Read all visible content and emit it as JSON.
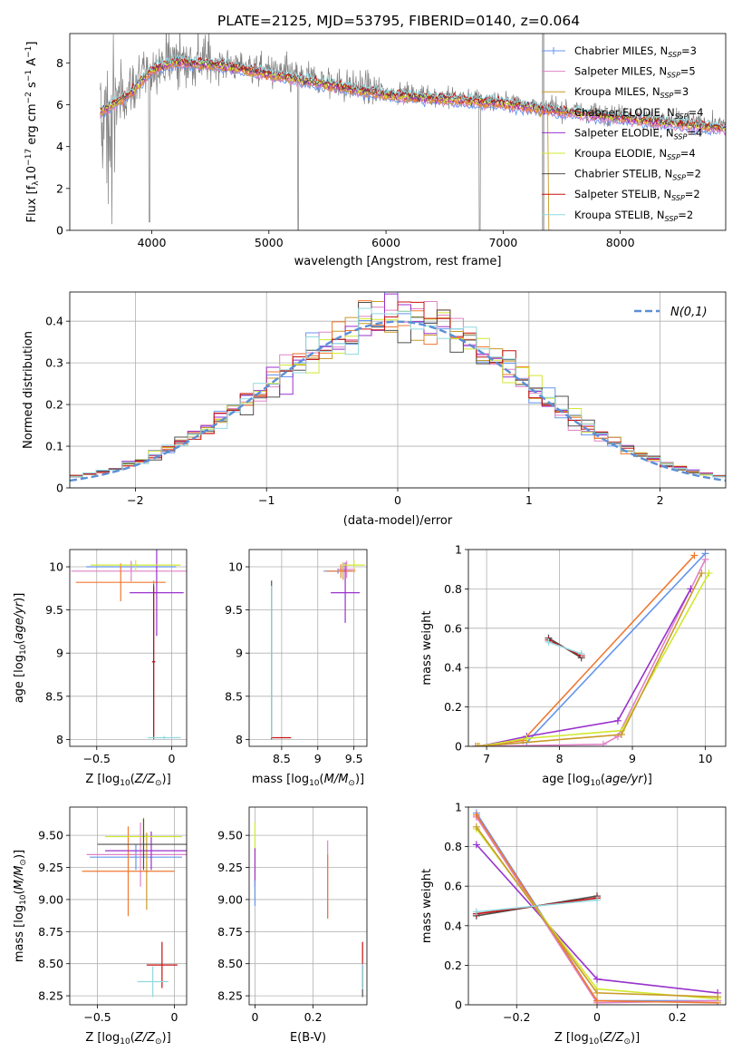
{
  "figure": {
    "title": "PLATE=2125, MJD=53795, FIBERID=0140, z=0.064"
  },
  "models": [
    {
      "label": "Chabrier MILES",
      "nssp": 3,
      "color": "#6495ed"
    },
    {
      "label": "Salpeter MILES",
      "nssp": 5,
      "color": "#e083c8"
    },
    {
      "label": "Kroupa MILES",
      "nssp": 3,
      "color": "#c89a28"
    },
    {
      "label": "Chabrier ELODIE",
      "nssp": 4,
      "color": "#f07830"
    },
    {
      "label": "Salpeter ELODIE",
      "nssp": 4,
      "color": "#9932cc"
    },
    {
      "label": "Kroupa ELODIE",
      "nssp": 4,
      "color": "#d0e830"
    },
    {
      "label": "Chabrier STELIB",
      "nssp": 2,
      "color": "#505050"
    },
    {
      "label": "Salpeter STELIB",
      "nssp": 2,
      "color": "#c81010"
    },
    {
      "label": "Kroupa STELIB",
      "nssp": 2,
      "color": "#90d8e0"
    }
  ],
  "chart_data": [
    {
      "id": "spectrum",
      "type": "line",
      "xlabel": "wavelength [Angstrom, rest frame]",
      "ylabel": "Flux [f_λ 10^-17 erg cm^-2 s^-1 A^-1]",
      "xlim": [
        3300,
        8900
      ],
      "ylim": [
        0,
        9.4
      ],
      "xticks": [
        4000,
        5000,
        6000,
        7000,
        8000
      ],
      "yticks": [
        0,
        2,
        4,
        6,
        8
      ],
      "grid": false,
      "legend": "right",
      "data_color": "#808080",
      "data_range": [
        3560,
        8900
      ],
      "continuum": [
        {
          "x": 3560,
          "y": 5.8
        },
        {
          "x": 3800,
          "y": 6.6
        },
        {
          "x": 4000,
          "y": 7.8
        },
        {
          "x": 4200,
          "y": 8.2
        },
        {
          "x": 4600,
          "y": 8.0
        },
        {
          "x": 5000,
          "y": 7.6
        },
        {
          "x": 5500,
          "y": 7.1
        },
        {
          "x": 6000,
          "y": 6.6
        },
        {
          "x": 6500,
          "y": 6.4
        },
        {
          "x": 7000,
          "y": 6.2
        },
        {
          "x": 7500,
          "y": 5.8
        },
        {
          "x": 8000,
          "y": 5.5
        },
        {
          "x": 8500,
          "y": 5.2
        },
        {
          "x": 8900,
          "y": 5.0
        }
      ]
    },
    {
      "id": "residuals",
      "type": "bar",
      "xlabel": "(data-model)/error",
      "ylabel": "Normed distribution",
      "xlim": [
        -2.5,
        2.5
      ],
      "ylim": [
        0,
        0.47
      ],
      "xticks": [
        -2,
        -1,
        0,
        1,
        2
      ],
      "yticks": [
        0.0,
        0.1,
        0.2,
        0.3,
        0.4
      ],
      "grid": true,
      "legend": "top-right",
      "gaussian_label": "N(0,1)",
      "gaussian_color": "#5b8fd6",
      "bin_width": 0.1
    },
    {
      "id": "age-vs-Z",
      "type": "scatter",
      "xlabel": "Z [log10(Z/Z_sun)]",
      "ylabel": "age [log10(age/yr)]",
      "xlim": [
        -0.68,
        0.1
      ],
      "ylim": [
        7.92,
        10.2
      ],
      "xticks": [
        -0.5,
        0.0
      ],
      "yticks": [
        8.0,
        8.5,
        9.0,
        9.5,
        10.0
      ],
      "grid": true,
      "points": [
        {
          "x": -0.27,
          "y": 10.0,
          "ex": 0.3,
          "ey": 0.04,
          "c": 0
        },
        {
          "x": -0.27,
          "y": 9.95,
          "ex": 0.4,
          "ey": 0.12,
          "c": 1
        },
        {
          "x": -0.12,
          "y": 9.82,
          "ex": 0.0,
          "ey": 0.02,
          "c": 2
        },
        {
          "x": -0.34,
          "y": 9.82,
          "ex": 0.3,
          "ey": 0.22,
          "c": 3
        },
        {
          "x": -0.1,
          "y": 9.7,
          "ex": 0.18,
          "ey": 0.5,
          "c": 4
        },
        {
          "x": -0.24,
          "y": 10.02,
          "ex": 0.3,
          "ey": 0.06,
          "c": 5
        },
        {
          "x": -0.12,
          "y": 8.9,
          "ex": 0.01,
          "ey": 0.9,
          "c": 6
        },
        {
          "x": -0.12,
          "y": 8.9,
          "ex": 0.01,
          "ey": 0.87,
          "c": 7
        },
        {
          "x": -0.05,
          "y": 8.02,
          "ex": 0.11,
          "ey": 0.02,
          "c": 8
        }
      ]
    },
    {
      "id": "age-vs-mass",
      "type": "scatter",
      "xlabel": "mass [log10(M/M_sun)]",
      "ylabel": "",
      "xlim": [
        8.05,
        9.68
      ],
      "ylim": [
        7.92,
        10.2
      ],
      "xticks": [
        8.5,
        9.0,
        9.5
      ],
      "yticks": [
        8.0,
        8.5,
        9.0,
        9.5,
        10.0
      ],
      "grid": true,
      "points": [
        {
          "x": 9.28,
          "y": 9.95,
          "ex": 0.2,
          "ey": 0.03,
          "c": 0
        },
        {
          "x": 9.4,
          "y": 9.97,
          "ex": 0.12,
          "ey": 0.1,
          "c": 1
        },
        {
          "x": 9.35,
          "y": 9.95,
          "ex": 0.01,
          "ey": 0.1,
          "c": 2
        },
        {
          "x": 9.32,
          "y": 9.95,
          "ex": 0.2,
          "ey": 0.08,
          "c": 3
        },
        {
          "x": 9.38,
          "y": 9.7,
          "ex": 0.2,
          "ey": 0.35,
          "c": 4
        },
        {
          "x": 9.5,
          "y": 10.02,
          "ex": 0.15,
          "ey": 0.06,
          "c": 5
        },
        {
          "x": 8.36,
          "y": 8.92,
          "ex": 0.0,
          "ey": 0.92,
          "c": 6
        },
        {
          "x": 8.5,
          "y": 8.02,
          "ex": 0.13,
          "ey": 0.0,
          "c": 7
        },
        {
          "x": 8.36,
          "y": 8.9,
          "ex": 0.0,
          "ey": 0.88,
          "c": 8
        }
      ]
    },
    {
      "id": "massweight-vs-age",
      "type": "line",
      "xlabel": "age [log10(age/yr)]",
      "ylabel": "mass weight",
      "xlim": [
        6.75,
        10.28
      ],
      "ylim": [
        0,
        1.0
      ],
      "xticks": [
        7,
        8,
        9,
        10
      ],
      "yticks": [
        0.0,
        0.2,
        0.4,
        0.6,
        0.8,
        1.0
      ],
      "grid": true,
      "series": [
        {
          "c": 0,
          "x": [
            6.85,
            7.55,
            10.0
          ],
          "y": [
            0.0,
            0.02,
            0.98
          ]
        },
        {
          "c": 1,
          "x": [
            6.9,
            8.6,
            8.8,
            10.0
          ],
          "y": [
            0.0,
            0.01,
            0.05,
            0.95
          ]
        },
        {
          "c": 3,
          "x": [
            6.85,
            7.5,
            9.85
          ],
          "y": [
            0.0,
            0.03,
            0.97
          ]
        },
        {
          "c": 4,
          "x": [
            6.9,
            7.55,
            8.8,
            9.8
          ],
          "y": [
            0.0,
            0.05,
            0.13,
            0.8
          ]
        },
        {
          "c": 5,
          "x": [
            6.9,
            7.55,
            8.85,
            10.05
          ],
          "y": [
            0.0,
            0.04,
            0.08,
            0.88
          ]
        },
        {
          "c": 6,
          "x": [
            7.85,
            8.3
          ],
          "y": [
            0.55,
            0.45
          ]
        },
        {
          "c": 7,
          "x": [
            7.85,
            8.3
          ],
          "y": [
            0.54,
            0.46
          ]
        },
        {
          "c": 8,
          "x": [
            7.85,
            8.3
          ],
          "y": [
            0.53,
            0.47
          ]
        },
        {
          "c": 2,
          "x": [
            6.88,
            8.85,
            9.95
          ],
          "y": [
            0.0,
            0.06,
            0.88
          ]
        }
      ]
    },
    {
      "id": "mass-vs-Z",
      "type": "scatter",
      "xlabel": "Z [log10(Z/Z_sun)]",
      "ylabel": "mass [log10(M/M_sun)]",
      "xlim": [
        -0.68,
        0.08
      ],
      "ylim": [
        8.18,
        9.72
      ],
      "xticks": [
        -0.5,
        0.0
      ],
      "yticks": [
        8.25,
        8.5,
        8.75,
        9.0,
        9.25,
        9.5
      ],
      "yticklabels": [
        "8.25",
        "8.50",
        "8.75",
        "9.00",
        "9.25",
        "9.50"
      ],
      "grid": true,
      "points": [
        {
          "x": -0.25,
          "y": 9.33,
          "ex": 0.3,
          "ey": 0.1,
          "c": 0
        },
        {
          "x": -0.22,
          "y": 9.35,
          "ex": 0.35,
          "ey": 0.25,
          "c": 1
        },
        {
          "x": -0.18,
          "y": 9.22,
          "ex": 0.01,
          "ey": 0.3,
          "c": 2
        },
        {
          "x": -0.3,
          "y": 9.22,
          "ex": 0.3,
          "ey": 0.35,
          "c": 3
        },
        {
          "x": -0.15,
          "y": 9.38,
          "ex": 0.3,
          "ey": 0.15,
          "c": 4
        },
        {
          "x": -0.2,
          "y": 9.49,
          "ex": 0.25,
          "ey": 0.15,
          "c": 5
        },
        {
          "x": -0.2,
          "y": 9.43,
          "ex": 0.3,
          "ey": 0.2,
          "c": 6
        },
        {
          "x": -0.08,
          "y": 8.49,
          "ex": 0.1,
          "ey": 0.18,
          "c": 7
        },
        {
          "x": -0.14,
          "y": 8.36,
          "ex": 0.1,
          "ey": 0.12,
          "c": 8
        }
      ]
    },
    {
      "id": "mass-vs-EBV",
      "type": "scatter",
      "xlabel": "E(B-V)",
      "ylabel": "",
      "xlim": [
        -0.02,
        0.385
      ],
      "ylim": [
        8.18,
        9.72
      ],
      "xticks": [
        0.0,
        0.2
      ],
      "yticks": [
        8.25,
        8.5,
        8.75,
        9.0,
        9.25,
        9.5
      ],
      "yticklabels": [
        "8.25",
        "8.50",
        "8.75",
        "9.00",
        "9.25",
        "9.50"
      ],
      "grid": true,
      "points": [
        {
          "x": 0.0,
          "y": 9.3,
          "ex": 0,
          "ey": 0.3,
          "c": 5
        },
        {
          "x": 0.0,
          "y": 9.25,
          "ex": 0,
          "ey": 0.15,
          "c": 4
        },
        {
          "x": 0.0,
          "y": 9.05,
          "ex": 0,
          "ey": 0.1,
          "c": 0
        },
        {
          "x": 0.25,
          "y": 9.16,
          "ex": 0,
          "ey": 0.3,
          "c": 1
        },
        {
          "x": 0.25,
          "y": 9.1,
          "ex": 0,
          "ey": 0.25,
          "c": 3
        },
        {
          "x": 0.37,
          "y": 8.49,
          "ex": 0,
          "ey": 0.18,
          "c": 7
        },
        {
          "x": 0.37,
          "y": 8.36,
          "ex": 0,
          "ey": 0.12,
          "c": 6
        },
        {
          "x": 0.37,
          "y": 8.4,
          "ex": 0,
          "ey": 0.1,
          "c": 8
        }
      ]
    },
    {
      "id": "massweight-vs-Z",
      "type": "line",
      "xlabel": "Z [log10(Z/Z_sun)]",
      "ylabel": "mass weight",
      "xlim": [
        -0.32,
        0.32
      ],
      "ylim": [
        0,
        1.0
      ],
      "xticks": [
        -0.2,
        0.0,
        0.2
      ],
      "yticks": [
        0.0,
        0.2,
        0.4,
        0.6,
        0.8,
        1.0
      ],
      "grid": true,
      "series": [
        {
          "c": 0,
          "x": [
            -0.3,
            0.0,
            0.3
          ],
          "y": [
            0.97,
            0.02,
            0.02
          ]
        },
        {
          "c": 1,
          "x": [
            -0.3,
            0.0,
            0.3
          ],
          "y": [
            0.95,
            0.01,
            0.02
          ]
        },
        {
          "c": 3,
          "x": [
            -0.3,
            0.0,
            0.3
          ],
          "y": [
            0.96,
            0.02,
            0.01
          ]
        },
        {
          "c": 4,
          "x": [
            -0.3,
            0.0,
            0.3
          ],
          "y": [
            0.81,
            0.13,
            0.06
          ]
        },
        {
          "c": 5,
          "x": [
            -0.3,
            0.0,
            0.3
          ],
          "y": [
            0.89,
            0.08,
            0.03
          ]
        },
        {
          "c": 2,
          "x": [
            -0.3,
            0.0,
            0.3
          ],
          "y": [
            0.9,
            0.06,
            0.04
          ]
        },
        {
          "c": 6,
          "x": [
            -0.3,
            0.0
          ],
          "y": [
            0.45,
            0.55
          ]
        },
        {
          "c": 7,
          "x": [
            -0.3,
            0.0
          ],
          "y": [
            0.46,
            0.54
          ]
        },
        {
          "c": 8,
          "x": [
            -0.3,
            0.0
          ],
          "y": [
            0.47,
            0.53
          ]
        }
      ]
    }
  ]
}
